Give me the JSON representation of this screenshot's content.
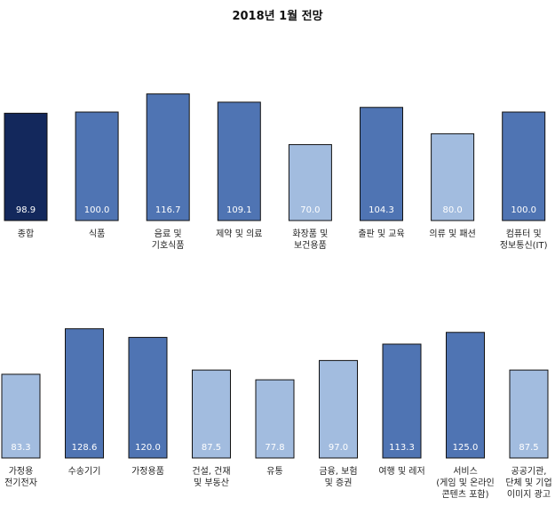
{
  "title": "2018년 1월 전망",
  "colors": {
    "dark": "#13285c",
    "mid": "#4f74b3",
    "light": "#a2bcdf"
  },
  "chart_data": [
    {
      "type": "bar",
      "title": "2018년 1월 전망",
      "categories": [
        [
          "종합"
        ],
        [
          "식품"
        ],
        [
          "음료 및",
          "기호식품"
        ],
        [
          "제약 및 의료"
        ],
        [
          "화장품 및",
          "보건용품"
        ],
        [
          "출판 및 교육"
        ],
        [
          "의류 및 패션"
        ],
        [
          "컴퓨터 및",
          "정보통신(IT)"
        ]
      ],
      "values": [
        98.9,
        100.0,
        116.7,
        109.1,
        70.0,
        104.3,
        80.0,
        100.0
      ],
      "value_labels": [
        "98.9",
        "100.0",
        "116.7",
        "109.1",
        "70.0",
        "104.3",
        "80.0",
        "100.0"
      ],
      "bar_shades": [
        "dark",
        "mid",
        "mid",
        "mid",
        "light",
        "mid",
        "light",
        "mid"
      ],
      "ylim": [
        0,
        130
      ]
    },
    {
      "type": "bar",
      "categories": [
        [
          "가정용",
          "전기전자"
        ],
        [
          "수송기기"
        ],
        [
          "가정용품"
        ],
        [
          "건설, 건재",
          "및 부동산"
        ],
        [
          "유통"
        ],
        [
          "금융, 보험",
          "및 증권"
        ],
        [
          "여행 및 레저"
        ],
        [
          "서비스",
          "(게임 및 온라인",
          "콘텐츠 포함)"
        ],
        [
          "공공기관,",
          "단체 및 기업",
          "이미지 광고"
        ]
      ],
      "values": [
        83.3,
        128.6,
        120.0,
        87.5,
        77.8,
        97.0,
        113.3,
        125.0,
        87.5
      ],
      "value_labels": [
        "83.3",
        "128.6",
        "120.0",
        "87.5",
        "77.8",
        "97.0",
        "113.3",
        "125.0",
        "87.5"
      ],
      "bar_shades": [
        "light",
        "mid",
        "mid",
        "light",
        "light",
        "light",
        "mid",
        "mid",
        "light"
      ],
      "ylim": [
        0,
        130
      ]
    }
  ]
}
